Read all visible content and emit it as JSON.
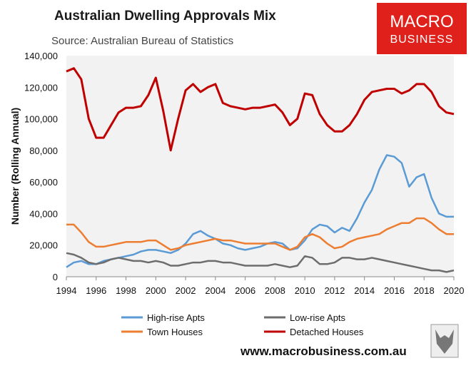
{
  "chart_data": {
    "type": "line",
    "title": "Australian Dwelling Approvals Mix",
    "subtitle": "Source: Australian Bureau of Statistics",
    "y_label": "Number (Rolling Annual)",
    "logo": {
      "line1": "MACRO",
      "line2": "BUSINESS"
    },
    "footer": "www.macrobusiness.com.au",
    "xlim": [
      1994,
      2020
    ],
    "xticks": [
      1994,
      1996,
      1998,
      2000,
      2002,
      2004,
      2006,
      2008,
      2010,
      2012,
      2014,
      2016,
      2018,
      2020
    ],
    "ylim": [
      0,
      140000
    ],
    "yticks": [
      0,
      {
        "value": 20000,
        "label": "20,000"
      },
      {
        "value": 40000,
        "label": "40,000"
      },
      {
        "value": 60000,
        "label": "60,000"
      },
      {
        "value": 80000,
        "label": "80,000"
      },
      {
        "value": 100000,
        "label": "100,000"
      },
      {
        "value": 120000,
        "label": "120,000"
      },
      {
        "value": 140000,
        "label": "140,000"
      }
    ],
    "grid": false,
    "x": [
      1994,
      1994.5,
      1995,
      1995.5,
      1996,
      1996.5,
      1997,
      1997.5,
      1998,
      1998.5,
      1999,
      1999.5,
      2000,
      2000.5,
      2001,
      2001.5,
      2002,
      2002.5,
      2003,
      2003.5,
      2004,
      2004.5,
      2005,
      2005.5,
      2006,
      2006.5,
      2007,
      2007.5,
      2008,
      2008.5,
      2009,
      2009.5,
      2010,
      2010.5,
      2011,
      2011.5,
      2012,
      2012.5,
      2013,
      2013.5,
      2014,
      2014.5,
      2015,
      2015.5,
      2016,
      2016.5,
      2017,
      2017.5,
      2018,
      2018.5,
      2019,
      2019.5,
      2020
    ],
    "series": [
      {
        "name": "High-rise Apts",
        "color": "#5b9bd5",
        "values": [
          6000,
          9000,
          10000,
          8000,
          8000,
          10000,
          11000,
          12000,
          13000,
          14000,
          16000,
          17000,
          17000,
          16000,
          15000,
          17000,
          21000,
          27000,
          29000,
          26000,
          24000,
          21000,
          20000,
          18000,
          17000,
          18000,
          19000,
          21000,
          22000,
          21000,
          17000,
          18000,
          23000,
          30000,
          33000,
          32000,
          28000,
          31000,
          29000,
          37000,
          47000,
          55000,
          68000,
          77000,
          76000,
          72000,
          57000,
          63000,
          65000,
          50000,
          40000,
          38000,
          38000
        ]
      },
      {
        "name": "Low-rise Apts",
        "color": "#6d6d6d",
        "values": [
          15000,
          14000,
          12000,
          9000,
          8000,
          9000,
          11000,
          12000,
          11000,
          10000,
          10000,
          9000,
          10000,
          9000,
          7000,
          7000,
          8000,
          9000,
          9000,
          10000,
          10000,
          9000,
          9000,
          8000,
          7000,
          7000,
          7000,
          7000,
          8000,
          7000,
          6000,
          7000,
          13000,
          12000,
          8000,
          8000,
          9000,
          12000,
          12000,
          11000,
          11000,
          12000,
          11000,
          10000,
          9000,
          8000,
          7000,
          6000,
          5000,
          4000,
          4000,
          3000,
          4000
        ]
      },
      {
        "name": "Town Houses",
        "color": "#ed7d31",
        "values": [
          33000,
          33000,
          28000,
          22000,
          19000,
          19000,
          20000,
          21000,
          22000,
          22000,
          22000,
          23000,
          23000,
          20000,
          17000,
          18000,
          20000,
          21000,
          22000,
          23000,
          24000,
          23000,
          23000,
          22000,
          21000,
          21000,
          21000,
          21000,
          21000,
          19000,
          17000,
          19000,
          25000,
          27000,
          25000,
          21000,
          18000,
          19000,
          22000,
          24000,
          25000,
          26000,
          27000,
          30000,
          32000,
          34000,
          34000,
          37000,
          37000,
          34000,
          30000,
          27000,
          27000
        ]
      },
      {
        "name": "Detached Houses",
        "color": "#c00000",
        "values": [
          130000,
          132000,
          125000,
          100000,
          88000,
          88000,
          96000,
          104000,
          107000,
          107000,
          108000,
          115000,
          126000,
          105000,
          80000,
          100000,
          118000,
          122000,
          117000,
          120000,
          122000,
          110000,
          108000,
          107000,
          106000,
          107000,
          107000,
          108000,
          109000,
          104000,
          96000,
          100000,
          116000,
          115000,
          103000,
          96000,
          92000,
          92000,
          96000,
          103000,
          112000,
          117000,
          118000,
          119000,
          119000,
          116000,
          118000,
          122000,
          122000,
          117000,
          108000,
          104000,
          103000
        ]
      }
    ]
  }
}
